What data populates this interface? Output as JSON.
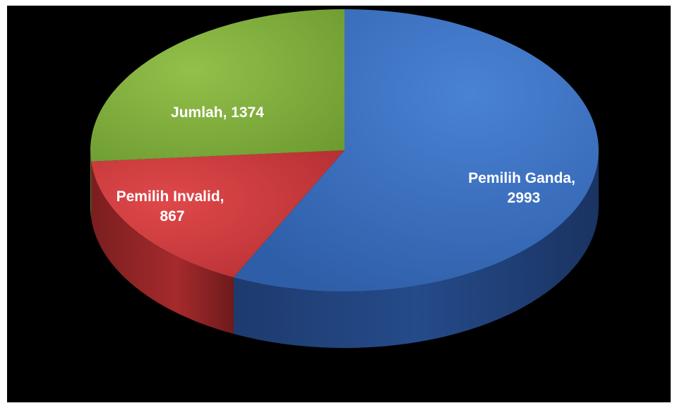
{
  "chart_data": {
    "type": "pie",
    "title": "",
    "style": "3d",
    "background": "#000000",
    "slices": [
      {
        "label": "Pemilih Ganda",
        "value": 2993,
        "color": "#3b6fc0"
      },
      {
        "label": "Pemilih Invalid",
        "value": 867,
        "color": "#c0393b"
      },
      {
        "label": "Jumlah",
        "value": 1374,
        "color": "#7aa83a"
      }
    ],
    "data_labels": [
      {
        "lines": [
          "Pemilih Ganda,",
          "2993"
        ]
      },
      {
        "lines": [
          "Pemilih Invalid,",
          "867"
        ]
      },
      {
        "lines": [
          "Jumlah, 1374"
        ]
      }
    ],
    "legend": "none"
  }
}
